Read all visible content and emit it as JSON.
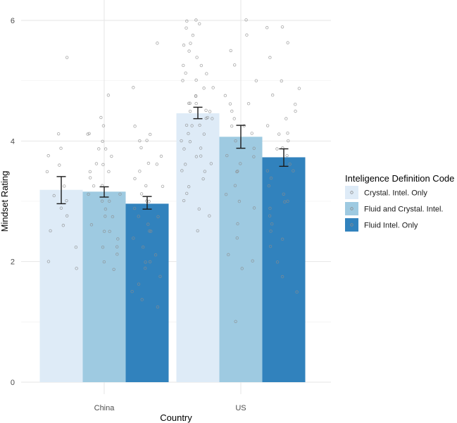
{
  "chart_data": {
    "type": "bar",
    "xlabel": "Country",
    "ylabel": "Mindset Rating",
    "categories": [
      "China",
      "US"
    ],
    "ylim": [
      0,
      6
    ],
    "yticks": [
      0,
      2,
      4,
      6
    ],
    "grid": true,
    "legend_title": "Inteligence Definition Code",
    "legend_position": "right",
    "series": [
      {
        "name": "Crystal. Intel. Only",
        "color": "#deebf7",
        "values": [
          3.19,
          4.46
        ],
        "err_low": [
          2.96,
          4.37
        ],
        "err_high": [
          3.41,
          4.56
        ]
      },
      {
        "name": "Fluid and Crystal. Intel.",
        "color": "#9ecae1",
        "values": [
          3.16,
          4.07
        ],
        "err_low": [
          3.07,
          3.88
        ],
        "err_high": [
          3.24,
          4.26
        ]
      },
      {
        "name": "Fluid Intel. Only",
        "color": "#3182bd",
        "values": [
          2.96,
          3.73
        ],
        "err_low": [
          2.87,
          3.58
        ],
        "err_high": [
          3.08,
          3.87
        ]
      }
    ],
    "points": [
      [
        [
          3.88,
          3.75,
          3.6,
          3.5,
          3.25,
          3.1,
          3.0,
          2.88,
          2.75,
          2.6,
          2.5,
          2.25,
          2.0,
          1.88,
          4.12,
          5.38
        ],
        [
          6.0,
          6.0,
          5.94,
          5.88,
          5.75,
          5.6,
          5.5,
          5.38,
          5.25,
          5.12,
          5.12,
          5.0,
          5.0,
          4.88,
          4.88,
          4.75,
          4.75,
          4.62,
          4.62,
          4.5,
          4.5,
          4.5,
          4.38,
          4.38,
          4.25,
          4.25,
          4.12,
          4.12,
          4.0,
          4.0,
          3.88,
          3.88,
          3.75,
          3.75,
          3.62,
          3.62,
          3.5,
          3.5,
          3.38,
          3.25,
          3.12,
          3.0,
          2.88,
          2.75,
          2.5,
          5.62,
          5.25,
          4.62,
          4.38,
          4.25
        ]
      ],
      [
        [
          4.75,
          4.38,
          4.25,
          4.12,
          4.0,
          3.88,
          3.75,
          3.62,
          3.5,
          3.38,
          3.25,
          3.12,
          3.0,
          2.88,
          2.75,
          2.62,
          2.5,
          2.38,
          2.25,
          2.12,
          2.0,
          1.88,
          3.88,
          3.5,
          3.25,
          3.12,
          3.0,
          2.75,
          2.5,
          2.25,
          4.12,
          3.62
        ],
        [
          6.0,
          5.75,
          5.5,
          5.25,
          5.0,
          4.75,
          4.62,
          4.5,
          4.38,
          4.25,
          4.12,
          4.0,
          3.88,
          3.75,
          3.62,
          3.5,
          3.25,
          3.12,
          3.0,
          2.88,
          2.62,
          2.38,
          2.12,
          2.0,
          1.88,
          1.0,
          4.62,
          4.25,
          3.75,
          3.5
        ]
      ],
      [
        [
          5.62,
          4.88,
          4.25,
          4.12,
          4.0,
          3.88,
          3.75,
          3.62,
          3.5,
          3.38,
          3.25,
          3.12,
          3.0,
          2.88,
          2.75,
          2.62,
          2.5,
          2.38,
          2.25,
          2.12,
          2.0,
          1.88,
          1.75,
          1.62,
          1.5,
          1.38,
          1.25,
          3.62,
          3.25,
          3.0,
          2.75,
          2.5,
          2.0,
          4.0
        ],
        [
          5.88,
          5.88,
          5.62,
          5.38,
          5.0,
          4.88,
          4.75,
          4.62,
          4.5,
          4.38,
          4.25,
          4.12,
          4.0,
          3.88,
          3.75,
          3.62,
          3.5,
          3.38,
          3.25,
          3.12,
          3.0,
          2.88,
          2.75,
          2.62,
          2.5,
          2.25,
          2.0,
          1.75,
          1.5,
          4.12,
          3.88,
          3.5,
          3.0,
          2.38
        ]
      ]
    ]
  }
}
